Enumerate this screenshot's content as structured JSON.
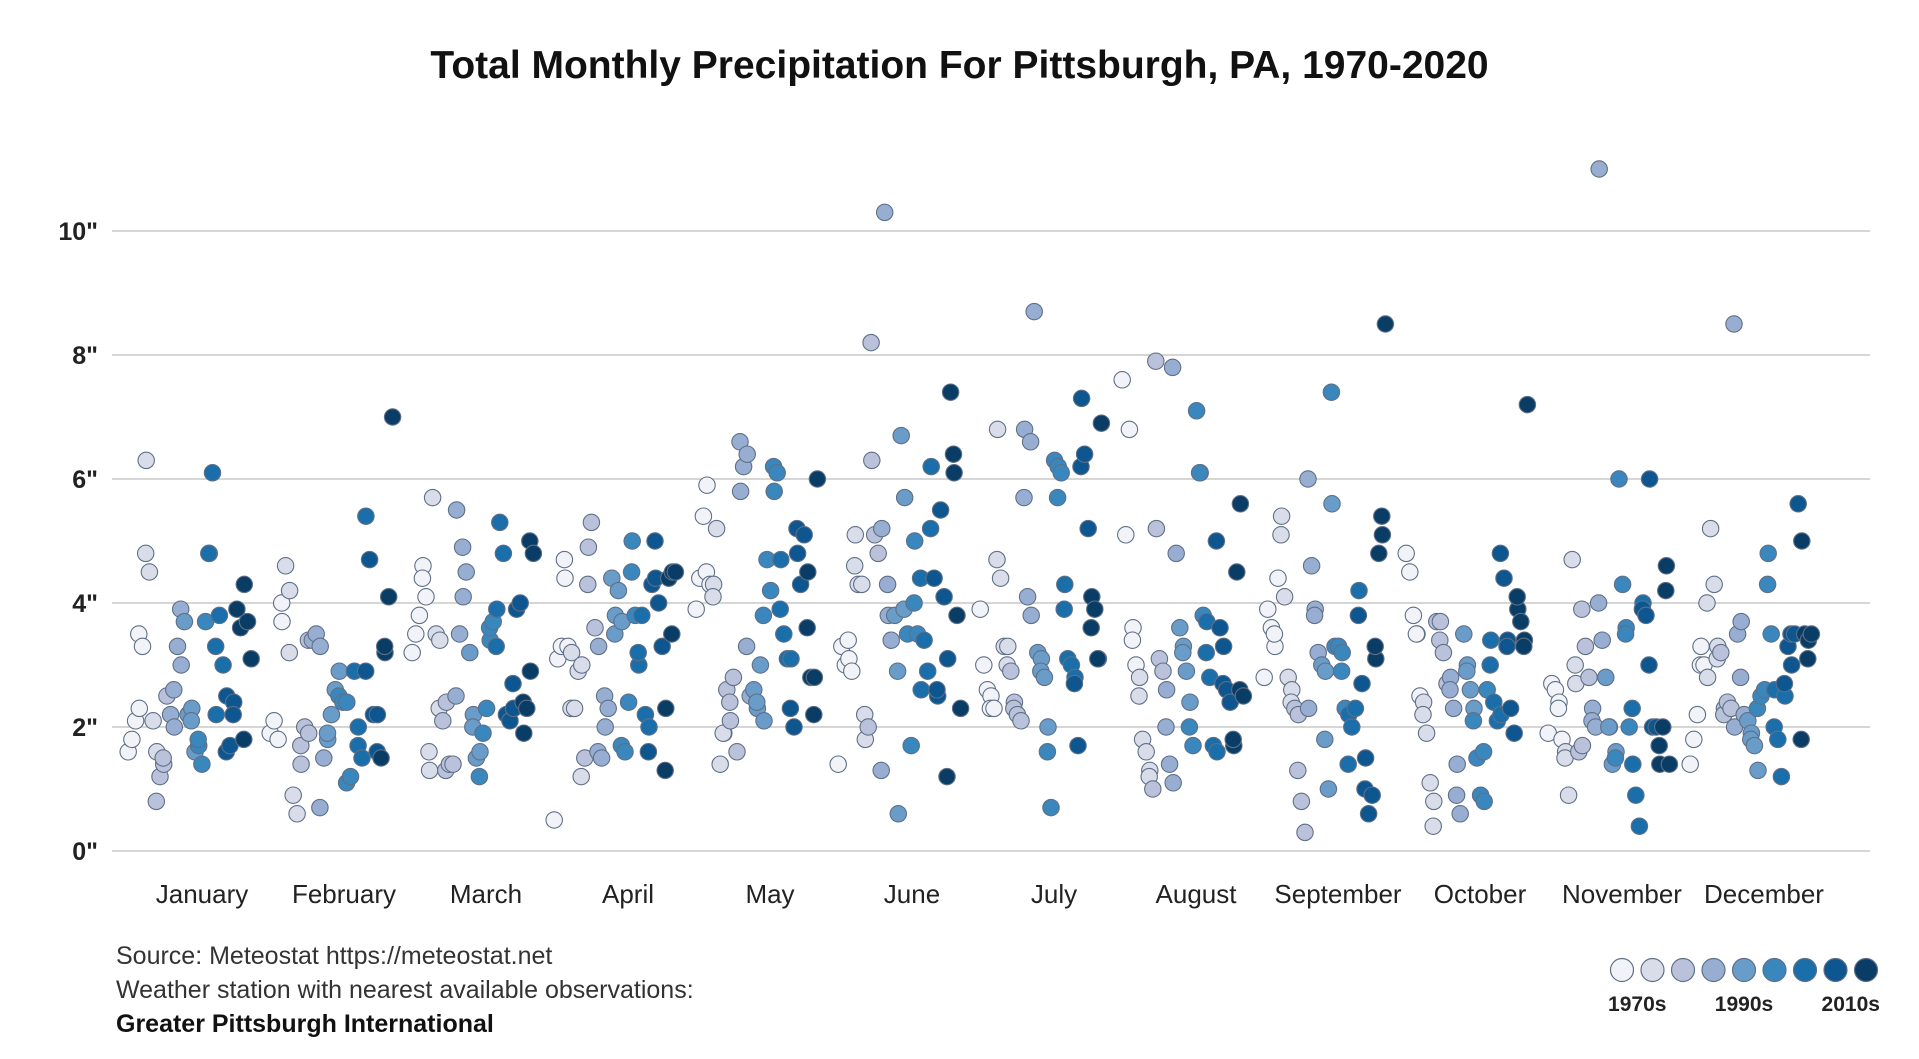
{
  "chart_data": {
    "type": "scatter",
    "title": "Total Monthly Precipitation For Pittsburgh, PA, 1970-2020",
    "xlabel": "",
    "ylabel": "",
    "ylim": [
      0,
      11
    ],
    "y_ticks": [
      0,
      2,
      4,
      6,
      8,
      10
    ],
    "y_tick_labels": [
      "0\"",
      "2\"",
      "4\"",
      "6\"",
      "8\"",
      "10\""
    ],
    "categories": [
      "January",
      "February",
      "March",
      "April",
      "May",
      "June",
      "July",
      "August",
      "September",
      "October",
      "November",
      "December"
    ],
    "grid": true,
    "legend_position": "bottom-right",
    "legend_labels": [
      "1970s",
      "1990s",
      "2010s"
    ],
    "colors": [
      "#f2f3f8",
      "#d9dce9",
      "#b9c2da",
      "#97aed2",
      "#6a9cc9",
      "#3a87be",
      "#1a6fab",
      "#0d5690",
      "#0a3d66"
    ],
    "series": [
      {
        "month": "January",
        "values": [
          1.6,
          1.8,
          2.1,
          2.3,
          3.5,
          3.3,
          6.3,
          4.8,
          4.5,
          2.1,
          1.6,
          0.8,
          1.2,
          1.4,
          1.5,
          2.5,
          2.2,
          2.0,
          2.6,
          3.3,
          3.0,
          3.9,
          3.7,
          2.2,
          2.3,
          2.1,
          1.6,
          1.7,
          1.8,
          1.4,
          3.7,
          4.8,
          4.8,
          6.1,
          2.2,
          3.3,
          3.8,
          3.0,
          2.5,
          1.6,
          1.7,
          2.4,
          2.2,
          3.9,
          3.6,
          4.3,
          1.8,
          3.7,
          3.1
        ]
      },
      {
        "month": "February",
        "values": [
          1.9,
          2.1,
          1.8,
          3.7,
          4.0,
          4.6,
          4.2,
          3.2,
          0.9,
          0.6,
          1.4,
          1.7,
          2.0,
          1.9,
          3.4,
          3.4,
          3.5,
          3.3,
          0.7,
          1.5,
          1.8,
          1.9,
          2.2,
          2.6,
          2.9,
          2.5,
          2.4,
          2.4,
          1.1,
          1.2,
          2.9,
          2.0,
          1.7,
          1.5,
          5.4,
          2.9,
          4.7,
          2.2,
          2.2,
          1.6,
          1.5,
          3.2,
          3.3,
          4.1,
          7.0
        ]
      },
      {
        "month": "March",
        "values": [
          3.2,
          3.5,
          3.8,
          4.6,
          4.4,
          4.1,
          1.3,
          1.6,
          5.7,
          3.5,
          3.4,
          2.3,
          2.1,
          2.4,
          1.3,
          1.4,
          1.4,
          5.5,
          2.5,
          3.5,
          4.1,
          4.9,
          4.5,
          3.2,
          2.2,
          2.0,
          1.5,
          1.6,
          1.2,
          1.9,
          2.3,
          3.4,
          3.6,
          3.7,
          3.9,
          3.3,
          5.3,
          4.8,
          2.2,
          2.2,
          2.1,
          2.3,
          2.7,
          3.9,
          4.0,
          1.9,
          2.4,
          2.3,
          2.9,
          5.0,
          4.8
        ]
      },
      {
        "month": "April",
        "values": [
          0.5,
          3.1,
          3.3,
          4.4,
          4.7,
          3.3,
          3.2,
          2.3,
          2.3,
          2.9,
          3.0,
          1.2,
          1.5,
          4.9,
          4.3,
          5.3,
          3.6,
          3.3,
          1.6,
          1.5,
          2.0,
          2.5,
          2.3,
          4.4,
          3.8,
          3.5,
          4.2,
          3.7,
          1.7,
          1.6,
          2.4,
          5.0,
          4.5,
          3.8,
          3.0,
          3.2,
          3.8,
          2.2,
          2.0,
          1.6,
          4.3,
          4.4,
          5.0,
          4.0,
          3.3,
          2.3,
          1.3,
          4.4,
          4.5,
          3.5,
          4.5
        ]
      },
      {
        "month": "May",
        "values": [
          3.9,
          4.4,
          5.4,
          5.9,
          4.5,
          4.3,
          4.3,
          4.1,
          5.2,
          1.4,
          1.9,
          1.9,
          2.6,
          2.1,
          2.4,
          2.8,
          1.6,
          5.8,
          6.6,
          6.2,
          6.4,
          3.3,
          2.5,
          2.6,
          2.3,
          2.4,
          3.0,
          2.1,
          3.8,
          4.7,
          4.2,
          5.8,
          6.2,
          6.1,
          4.7,
          3.9,
          3.5,
          3.1,
          3.1,
          2.3,
          2.0,
          4.8,
          5.2,
          4.3,
          5.1,
          4.5,
          3.6,
          2.8,
          2.8,
          2.2,
          6.0
        ]
      },
      {
        "month": "June",
        "values": [
          1.4,
          3.3,
          3.0,
          3.1,
          3.4,
          2.9,
          5.1,
          4.6,
          4.3,
          4.3,
          1.8,
          2.2,
          2.0,
          6.3,
          8.2,
          5.1,
          4.8,
          5.2,
          1.3,
          10.3,
          3.8,
          4.3,
          3.4,
          3.8,
          0.6,
          2.9,
          6.7,
          5.7,
          3.9,
          3.5,
          1.7,
          5.0,
          4.0,
          3.5,
          2.6,
          4.4,
          3.4,
          2.9,
          6.2,
          5.2,
          4.4,
          2.5,
          2.6,
          5.5,
          4.1,
          3.1,
          1.2,
          7.4,
          6.1,
          6.4,
          3.8,
          2.3
        ]
      },
      {
        "month": "July",
        "values": [
          3.9,
          3.0,
          2.6,
          2.5,
          2.3,
          2.3,
          6.8,
          4.7,
          4.4,
          3.3,
          3.3,
          3.0,
          2.9,
          2.4,
          2.3,
          2.2,
          2.1,
          6.8,
          5.7,
          4.1,
          3.8,
          6.6,
          8.7,
          3.2,
          3.1,
          2.9,
          2.8,
          2.0,
          1.6,
          0.7,
          6.3,
          6.2,
          5.7,
          6.1,
          4.3,
          3.9,
          3.1,
          3.0,
          2.8,
          2.7,
          1.7,
          7.3,
          6.2,
          6.4,
          5.2,
          4.1,
          3.6,
          3.9,
          3.1,
          3.1,
          6.9
        ]
      },
      {
        "month": "August",
        "values": [
          7.6,
          5.1,
          6.8,
          3.6,
          3.4,
          3.0,
          2.8,
          2.5,
          1.8,
          1.6,
          1.3,
          1.2,
          1.0,
          5.2,
          7.9,
          3.1,
          2.9,
          2.6,
          2.0,
          1.4,
          1.1,
          7.8,
          4.8,
          3.6,
          3.3,
          3.2,
          2.9,
          2.4,
          2.0,
          1.7,
          7.1,
          6.1,
          6.1,
          3.8,
          3.7,
          3.2,
          2.8,
          1.7,
          1.6,
          5.0,
          3.6,
          3.3,
          2.7,
          2.6,
          2.4,
          1.7,
          1.8,
          4.5,
          5.6,
          2.6,
          2.5
        ]
      },
      {
        "month": "September",
        "values": [
          2.8,
          3.9,
          3.6,
          3.3,
          3.5,
          4.4,
          5.4,
          5.1,
          4.1,
          2.8,
          2.6,
          2.4,
          2.3,
          2.2,
          1.3,
          0.8,
          0.3,
          2.3,
          6.0,
          4.6,
          3.9,
          3.8,
          3.2,
          3.0,
          2.9,
          1.8,
          1.0,
          5.6,
          7.4,
          3.3,
          3.3,
          3.2,
          2.9,
          2.3,
          2.2,
          1.4,
          2.0,
          2.3,
          4.2,
          3.8,
          2.7,
          1.5,
          1.0,
          0.6,
          0.9,
          3.1,
          3.3,
          4.8,
          5.1,
          5.4,
          8.5
        ]
      },
      {
        "month": "October",
        "values": [
          4.8,
          4.5,
          3.8,
          3.5,
          3.5,
          2.5,
          2.4,
          2.2,
          1.9,
          1.1,
          0.8,
          0.4,
          3.7,
          3.7,
          3.4,
          3.2,
          2.7,
          2.8,
          2.6,
          2.3,
          1.4,
          0.9,
          0.6,
          3.5,
          3.0,
          2.9,
          2.6,
          2.3,
          2.1,
          1.5,
          0.9,
          0.8,
          1.6,
          2.6,
          3.4,
          3.0,
          2.4,
          2.1,
          2.2,
          4.8,
          4.4,
          3.4,
          3.3,
          2.3,
          1.9,
          3.9,
          4.1,
          3.7,
          3.4,
          3.3,
          7.2
        ]
      },
      {
        "month": "November",
        "values": [
          1.9,
          2.7,
          2.6,
          2.4,
          2.3,
          1.8,
          1.6,
          1.5,
          0.9,
          4.7,
          2.7,
          3.0,
          1.6,
          1.7,
          3.9,
          3.3,
          2.8,
          2.3,
          2.1,
          2.0,
          11.0,
          4.0,
          3.4,
          2.8,
          2.0,
          2.0,
          1.4,
          1.6,
          1.5,
          6.0,
          4.3,
          3.6,
          3.5,
          2.0,
          1.4,
          2.3,
          0.9,
          0.4,
          4.0,
          3.9,
          3.8,
          6.0,
          3.0,
          2.0,
          2.0,
          1.4,
          1.7,
          2.0,
          4.6,
          4.2,
          1.4
        ]
      },
      {
        "month": "December",
        "values": [
          1.4,
          1.8,
          2.2,
          3.3,
          3.0,
          3.0,
          2.8,
          4.0,
          5.2,
          4.3,
          3.3,
          3.1,
          3.2,
          2.3,
          2.2,
          2.4,
          2.3,
          2.0,
          8.5,
          3.5,
          3.7,
          2.8,
          2.2,
          2.1,
          1.9,
          1.8,
          1.7,
          1.3,
          2.3,
          2.5,
          2.6,
          4.8,
          4.3,
          3.5,
          2.6,
          2.0,
          1.8,
          1.2,
          2.5,
          2.7,
          3.3,
          3.0,
          3.5,
          3.5,
          5.6,
          5.0,
          1.8,
          3.5,
          3.4,
          3.1,
          3.5
        ]
      }
    ]
  },
  "source": {
    "line1": "Source: Meteostat https://meteostat.net",
    "line2": "Weather station with nearest available observations:",
    "line3": "Greater Pittsburgh International"
  }
}
